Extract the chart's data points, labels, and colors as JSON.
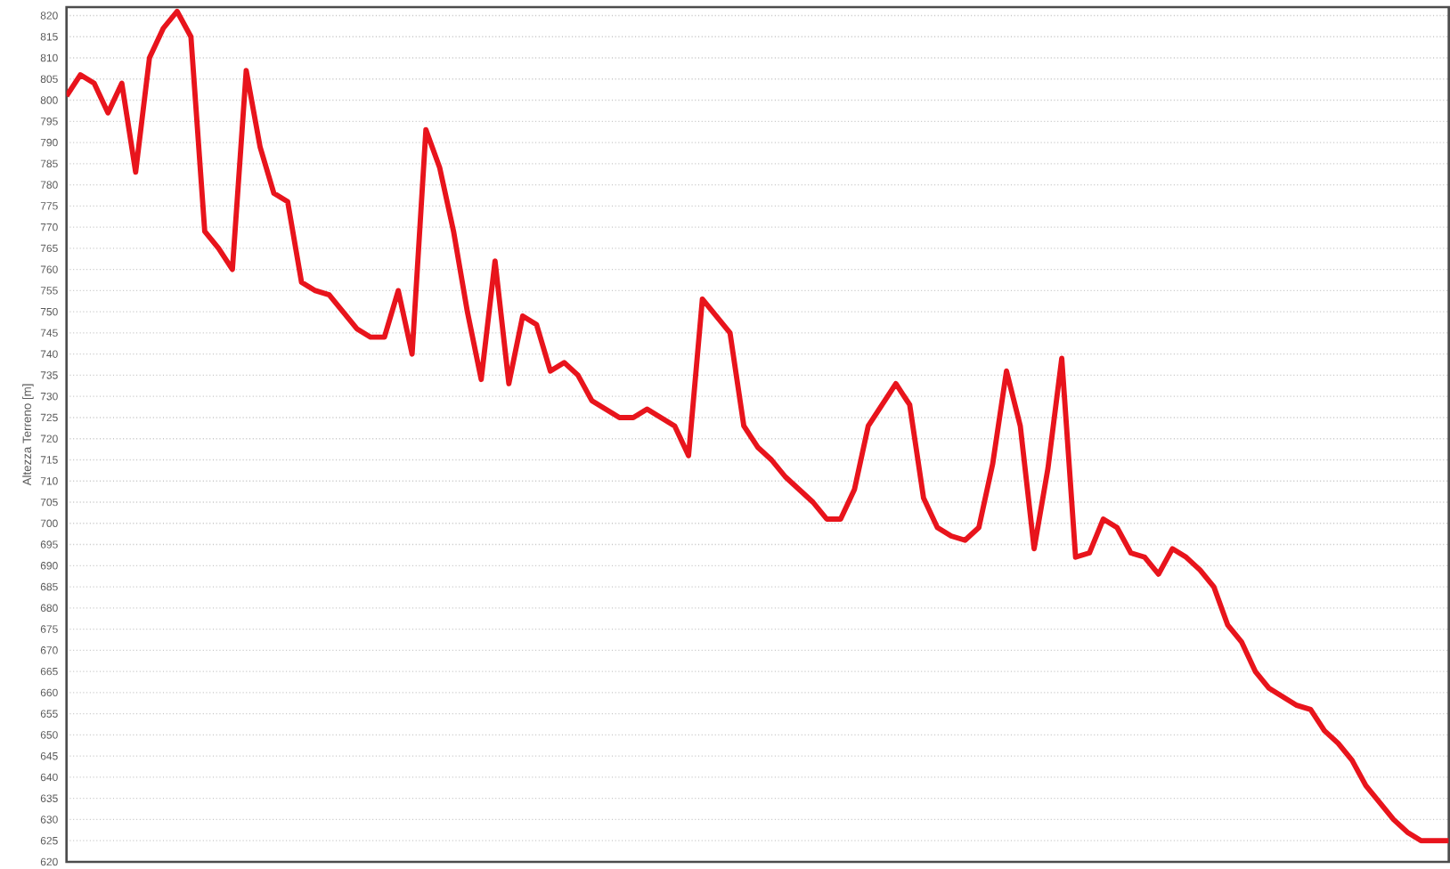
{
  "chart_data": {
    "type": "line",
    "ylabel": "Altezza Terreno [m]",
    "categories": [
      null,
      null,
      null,
      null,
      null,
      null,
      null,
      null,
      null,
      null,
      null,
      null,
      null,
      null,
      null,
      null,
      null,
      null,
      null,
      null,
      null,
      null,
      null,
      null,
      null,
      null,
      null,
      null,
      null,
      null,
      null,
      null,
      null,
      null,
      null,
      null,
      null,
      null,
      null,
      null,
      null,
      null,
      null,
      null,
      null,
      null,
      null,
      null,
      null,
      null,
      null,
      null,
      null,
      null,
      null,
      null,
      null,
      null,
      null,
      null,
      null,
      null,
      null,
      null,
      null,
      null,
      null,
      null,
      null,
      null,
      null,
      null,
      null,
      null,
      null,
      null,
      null,
      null,
      null,
      null,
      null,
      null,
      null,
      null,
      null,
      null,
      null,
      null,
      null,
      null,
      null,
      null,
      null,
      null,
      null,
      null,
      null,
      null,
      null,
      null,
      null
    ],
    "series": [
      {
        "color": "#e8141c",
        "values": [
          801,
          806,
          804,
          797,
          804,
          783,
          810,
          817,
          821,
          815,
          769,
          765,
          760,
          807,
          789,
          778,
          776,
          757,
          755,
          754,
          750,
          746,
          744,
          744,
          755,
          740,
          793,
          784,
          769,
          750,
          734,
          762,
          733,
          749,
          747,
          736,
          738,
          735,
          729,
          727,
          725,
          725,
          727,
          725,
          723,
          716,
          753,
          749,
          745,
          723,
          718,
          715,
          711,
          708,
          705,
          701,
          701,
          708,
          723,
          728,
          733,
          728,
          706,
          699,
          697,
          696,
          699,
          714,
          736,
          723,
          694,
          713,
          739,
          692,
          693,
          701,
          699,
          693,
          692,
          688,
          694,
          692,
          689,
          685,
          676,
          672,
          665,
          661,
          659,
          657,
          656,
          651,
          648,
          644,
          638,
          634,
          630,
          627,
          625,
          625,
          625
        ]
      }
    ],
    "ylim": [
      620,
      822
    ],
    "yticks": [
      620,
      625,
      630,
      635,
      640,
      645,
      650,
      655,
      660,
      665,
      670,
      675,
      680,
      685,
      690,
      695,
      700,
      705,
      710,
      715,
      720,
      725,
      730,
      735,
      740,
      745,
      750,
      755,
      760,
      765,
      770,
      775,
      780,
      785,
      790,
      795,
      800,
      805,
      810,
      815,
      820
    ],
    "grid": "y",
    "tick_labels": "y",
    "marker": "none",
    "line_style": "solid"
  }
}
